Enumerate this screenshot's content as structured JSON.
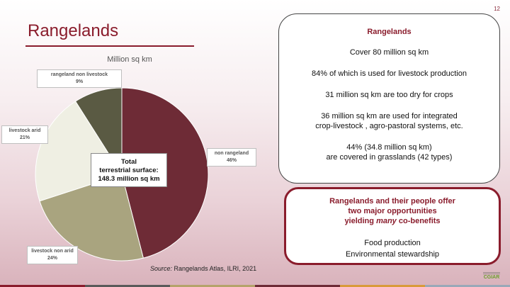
{
  "slide": {
    "page_number": "12",
    "title": "Rangelands",
    "source_label": "Source:",
    "source_text": " Rangelands Atlas, ILRI, 2021"
  },
  "chart_data": {
    "type": "pie",
    "title": "Million sq km",
    "slices": [
      {
        "label": "non rangeland",
        "percent_label": "46%",
        "value": 46,
        "color": "#6e2b36"
      },
      {
        "label": "livestock non arid",
        "percent_label": "24%",
        "value": 24,
        "color": "#a9a47f"
      },
      {
        "label": "livestock arid",
        "percent_label": "21%",
        "value": 21,
        "color": "#efefe3"
      },
      {
        "label": "rangeland non livestock",
        "percent_label": "9%",
        "value": 9,
        "color": "#5a5a43"
      }
    ],
    "center_annotation": [
      "Total",
      "terrestrial surface:",
      "148.3 million sq km"
    ]
  },
  "box1": {
    "heading": "Rangelands",
    "lines": [
      "Cover 80 million sq km",
      "84% of which is used for livestock production",
      "31 million sq km are too dry for crops",
      "36 million sq km are used for integrated",
      "crop-livestock , agro-pastoral systems, etc.",
      "44% (34.8 million sq km)",
      "are covered in grasslands (42 types)"
    ]
  },
  "box2": {
    "heading_lines": [
      "Rangelands and their people offer",
      "two major opportunities"
    ],
    "heading_line3_pre": "yielding ",
    "heading_line3_em": "many",
    "heading_line3_post": " co-benefits",
    "lines": [
      "Food production",
      "Environmental stewardship"
    ]
  },
  "logo": {
    "text": "CGIAR"
  },
  "colors": {
    "accent": "#8a1c2c",
    "footer": [
      "#8a1c2c",
      "#5a5a5a",
      "#b5a36a",
      "#6e2b36",
      "#d99a3a",
      "#9aa8b8"
    ]
  }
}
